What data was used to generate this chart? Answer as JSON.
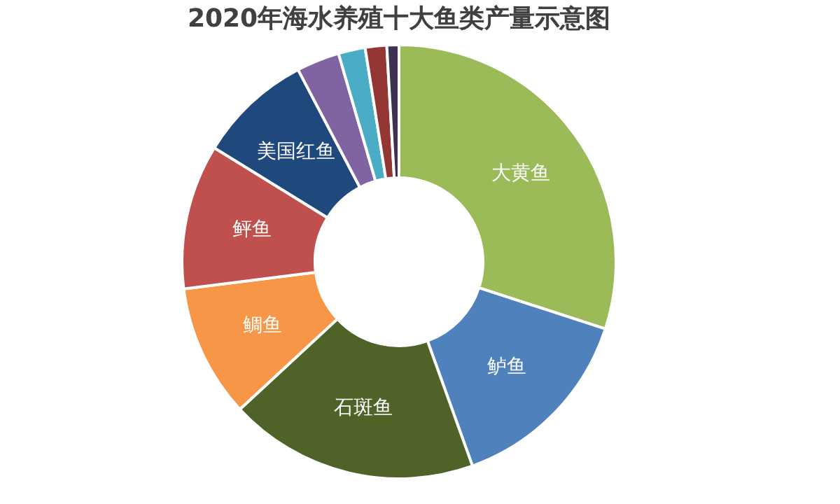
{
  "chart_data": {
    "type": "donut",
    "title": "2020年海水养殖十大鱼类产量示意图",
    "categories": [
      "大黄鱼",
      "鲈鱼",
      "石斑鱼",
      "鲷鱼",
      "鲆鱼",
      "美国红鱼",
      null,
      null,
      null,
      null
    ],
    "values": [
      30,
      14.5,
      18.6,
      9.9,
      10.8,
      8.5,
      3.2,
      2,
      1.6,
      0.9
    ],
    "colors": [
      "#9bbb59",
      "#4f81bd",
      "#4f6228",
      "#f79646",
      "#c0504d",
      "#1f497d",
      "#8064a2",
      "#4bacc6",
      "#943634",
      "#3f3151"
    ],
    "legend": false
  }
}
